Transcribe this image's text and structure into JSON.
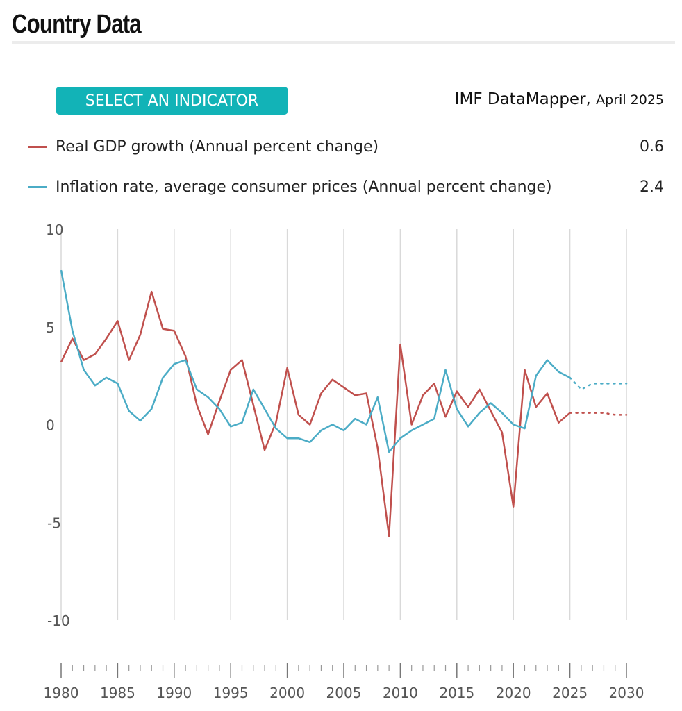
{
  "header": {
    "title": "Country Data"
  },
  "controls": {
    "indicator_button": "SELECT AN INDICATOR"
  },
  "source": {
    "name": "IMF DataMapper",
    "separator": ",",
    "date": "April 2025"
  },
  "legend": [
    {
      "label": "Real GDP growth (Annual percent change)",
      "value": "0.6",
      "color": "#c0504d"
    },
    {
      "label": "Inflation rate, average consumer prices (Annual percent change)",
      "value": "2.4",
      "color": "#4bacc6"
    }
  ],
  "chart_data": {
    "type": "line",
    "xlim": [
      1980,
      2030
    ],
    "ylim": [
      -10,
      10
    ],
    "yticks": [
      10,
      5,
      0,
      -5,
      -10
    ],
    "xticks": [
      1980,
      1985,
      1990,
      1995,
      2000,
      2005,
      2010,
      2015,
      2020,
      2025,
      2030
    ],
    "grid": "vertical",
    "projection_start": 2025,
    "x": [
      1980,
      1981,
      1982,
      1983,
      1984,
      1985,
      1986,
      1987,
      1988,
      1989,
      1990,
      1991,
      1992,
      1993,
      1994,
      1995,
      1996,
      1997,
      1998,
      1999,
      2000,
      2001,
      2002,
      2003,
      2004,
      2005,
      2006,
      2007,
      2008,
      2009,
      2010,
      2011,
      2012,
      2013,
      2014,
      2015,
      2016,
      2017,
      2018,
      2019,
      2020,
      2021,
      2022,
      2023,
      2024,
      2025,
      2026,
      2027,
      2028,
      2029,
      2030
    ],
    "series": [
      {
        "name": "Real GDP growth (Annual percent change)",
        "color": "#c0504d",
        "values": [
          3.2,
          4.4,
          3.3,
          3.6,
          4.4,
          5.3,
          3.3,
          4.6,
          6.8,
          4.9,
          4.8,
          3.5,
          1.0,
          -0.5,
          1.2,
          2.8,
          3.3,
          1.0,
          -1.3,
          0.1,
          2.9,
          0.5,
          0.0,
          1.6,
          2.3,
          1.9,
          1.5,
          1.6,
          -1.2,
          -5.7,
          4.1,
          0.0,
          1.5,
          2.1,
          0.4,
          1.7,
          0.9,
          1.8,
          0.7,
          -0.4,
          -4.2,
          2.8,
          0.9,
          1.6,
          0.1,
          0.6,
          0.6,
          0.6,
          0.6,
          0.5,
          0.5
        ]
      },
      {
        "name": "Inflation rate, average consumer prices (Annual percent change)",
        "color": "#4bacc6",
        "values": [
          7.9,
          4.8,
          2.8,
          2.0,
          2.4,
          2.1,
          0.7,
          0.2,
          0.8,
          2.4,
          3.1,
          3.3,
          1.8,
          1.4,
          0.8,
          -0.1,
          0.1,
          1.8,
          0.8,
          -0.2,
          -0.7,
          -0.7,
          -0.9,
          -0.3,
          0.0,
          -0.3,
          0.3,
          0.0,
          1.4,
          -1.4,
          -0.7,
          -0.3,
          0.0,
          0.3,
          2.8,
          0.8,
          -0.1,
          0.6,
          1.1,
          0.6,
          0.0,
          -0.2,
          2.5,
          3.3,
          2.7,
          2.4,
          1.8,
          2.1,
          2.1,
          2.1,
          2.1
        ]
      }
    ]
  }
}
